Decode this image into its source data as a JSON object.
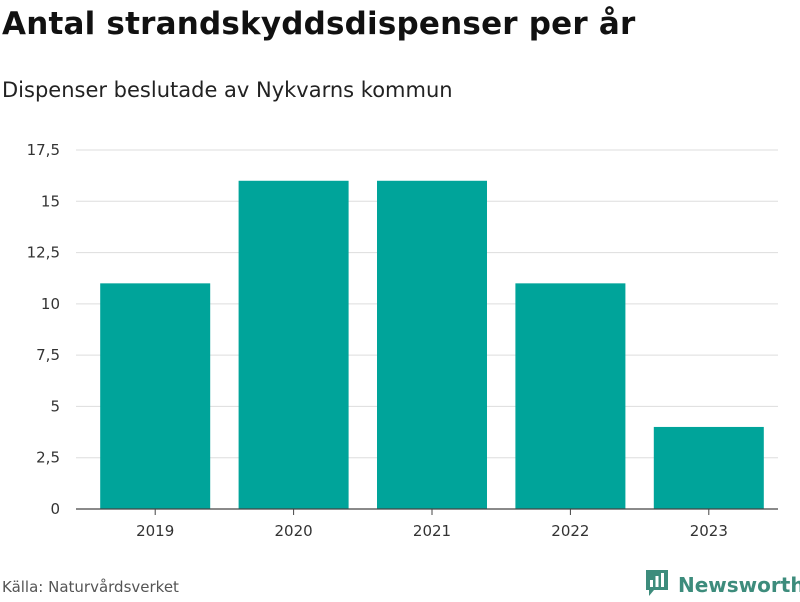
{
  "header": {
    "title": "Antal strandskyddsdispenser per år",
    "subtitle": "Dispenser beslutade av Nykvarns kommun"
  },
  "footer": {
    "source": "Källa: Naturvårdsverket",
    "brand": "Newsworthy",
    "brand_icon": "bar-chart-logo-icon"
  },
  "colors": {
    "bar": "#00a49a",
    "grid": "#dddddd",
    "brand": "#3d8c7c"
  },
  "chart_data": {
    "type": "bar",
    "title": "Antal strandskyddsdispenser per år",
    "subtitle": "Dispenser beslutade av Nykvarns kommun",
    "xlabel": "",
    "ylabel": "",
    "categories": [
      "2019",
      "2020",
      "2021",
      "2022",
      "2023"
    ],
    "values": [
      11,
      16,
      16,
      11,
      4
    ],
    "ylim": [
      0,
      17.5
    ],
    "yticks": [
      0,
      2.5,
      5,
      7.5,
      10,
      12.5,
      15,
      17.5
    ],
    "ytick_labels": [
      "0",
      "2,5",
      "5",
      "7,5",
      "10",
      "12,5",
      "15",
      "17,5"
    ],
    "grid": true,
    "legend": "none"
  }
}
